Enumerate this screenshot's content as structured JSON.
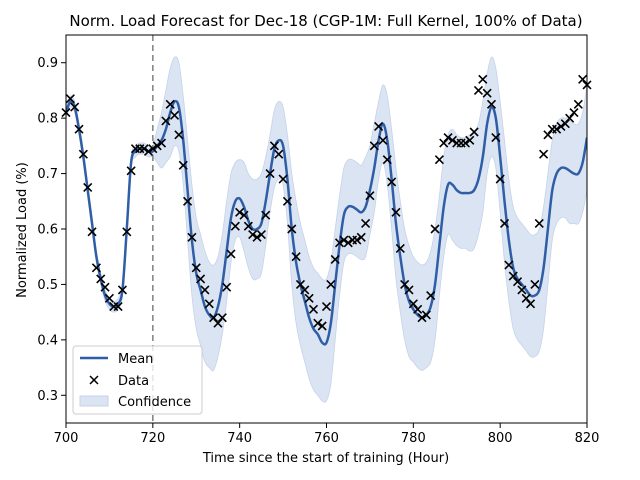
{
  "chart_data": {
    "type": "line",
    "title": "Norm. Load Forecast for Dec-18 (CGP-1M: Full Kernel, 100% of Data)",
    "xlabel": "Time since the start of training (Hour)",
    "ylabel": "Normalized Load (%)",
    "xlim": [
      700,
      820
    ],
    "ylim": [
      0.25,
      0.95
    ],
    "x_ticks": [
      700,
      720,
      740,
      760,
      780,
      800,
      820
    ],
    "y_ticks": [
      0.3,
      0.4,
      0.5,
      0.6,
      0.7,
      0.8,
      0.9
    ],
    "vline_x": 720,
    "grid": false,
    "legend_position": "lower-left",
    "legend": [
      "Mean",
      "Data",
      "Confidence"
    ],
    "colors": {
      "mean": "#2f5ea6",
      "band": "#dbe4f2",
      "band_edge": "#c5d3ea",
      "vline": "#7f7f7f"
    },
    "series": [
      {
        "name": "Mean",
        "x": [
          700,
          701,
          702,
          703,
          704,
          705,
          706,
          707,
          708,
          709,
          710,
          711,
          712,
          713,
          714,
          715,
          716,
          717,
          718,
          719,
          720,
          721,
          722,
          723,
          724,
          725,
          726,
          727,
          728,
          729,
          730,
          731,
          732,
          733,
          734,
          735,
          736,
          737,
          738,
          739,
          740,
          741,
          742,
          743,
          744,
          745,
          746,
          747,
          748,
          749,
          750,
          751,
          752,
          753,
          754,
          755,
          756,
          757,
          758,
          759,
          760,
          761,
          762,
          763,
          764,
          765,
          766,
          767,
          768,
          769,
          770,
          771,
          772,
          773,
          774,
          775,
          776,
          777,
          778,
          779,
          780,
          781,
          782,
          783,
          784,
          785,
          786,
          787,
          788,
          789,
          790,
          791,
          792,
          793,
          794,
          795,
          796,
          797,
          798,
          799,
          800,
          801,
          802,
          803,
          804,
          805,
          806,
          807,
          808,
          809,
          810,
          811,
          812,
          813,
          814,
          815,
          816,
          817,
          818,
          819,
          820
        ],
        "y": [
          0.81,
          0.83,
          0.82,
          0.78,
          0.73,
          0.67,
          0.61,
          0.55,
          0.51,
          0.48,
          0.465,
          0.46,
          0.465,
          0.49,
          0.6,
          0.72,
          0.74,
          0.745,
          0.745,
          0.74,
          0.74,
          0.75,
          0.76,
          0.78,
          0.81,
          0.83,
          0.82,
          0.76,
          0.67,
          0.58,
          0.52,
          0.49,
          0.46,
          0.445,
          0.44,
          0.46,
          0.5,
          0.56,
          0.62,
          0.65,
          0.655,
          0.64,
          0.615,
          0.6,
          0.6,
          0.61,
          0.65,
          0.7,
          0.745,
          0.76,
          0.75,
          0.69,
          0.6,
          0.54,
          0.5,
          0.47,
          0.44,
          0.42,
          0.41,
          0.395,
          0.395,
          0.43,
          0.5,
          0.57,
          0.625,
          0.64,
          0.64,
          0.635,
          0.63,
          0.64,
          0.67,
          0.71,
          0.76,
          0.79,
          0.76,
          0.69,
          0.61,
          0.55,
          0.5,
          0.47,
          0.455,
          0.445,
          0.44,
          0.445,
          0.46,
          0.5,
          0.57,
          0.64,
          0.68,
          0.68,
          0.67,
          0.665,
          0.665,
          0.665,
          0.67,
          0.69,
          0.73,
          0.79,
          0.82,
          0.8,
          0.73,
          0.65,
          0.58,
          0.53,
          0.51,
          0.5,
          0.49,
          0.48,
          0.48,
          0.49,
          0.53,
          0.6,
          0.67,
          0.7,
          0.71,
          0.71,
          0.705,
          0.7,
          0.7,
          0.72,
          0.765
        ],
        "upper": [
          0.82,
          0.84,
          0.83,
          0.79,
          0.74,
          0.68,
          0.62,
          0.56,
          0.52,
          0.49,
          0.475,
          0.47,
          0.475,
          0.5,
          0.61,
          0.73,
          0.75,
          0.755,
          0.755,
          0.75,
          0.75,
          0.78,
          0.81,
          0.85,
          0.89,
          0.91,
          0.9,
          0.84,
          0.76,
          0.68,
          0.62,
          0.59,
          0.56,
          0.54,
          0.535,
          0.55,
          0.59,
          0.65,
          0.7,
          0.72,
          0.725,
          0.72,
          0.7,
          0.69,
          0.69,
          0.7,
          0.73,
          0.77,
          0.815,
          0.83,
          0.82,
          0.77,
          0.7,
          0.65,
          0.61,
          0.58,
          0.55,
          0.53,
          0.52,
          0.51,
          0.51,
          0.54,
          0.6,
          0.66,
          0.71,
          0.725,
          0.725,
          0.72,
          0.715,
          0.73,
          0.75,
          0.79,
          0.83,
          0.86,
          0.84,
          0.78,
          0.71,
          0.65,
          0.6,
          0.57,
          0.55,
          0.54,
          0.535,
          0.54,
          0.56,
          0.6,
          0.66,
          0.73,
          0.77,
          0.78,
          0.77,
          0.765,
          0.765,
          0.77,
          0.775,
          0.79,
          0.83,
          0.88,
          0.91,
          0.89,
          0.83,
          0.76,
          0.69,
          0.64,
          0.62,
          0.61,
          0.6,
          0.59,
          0.59,
          0.6,
          0.64,
          0.7,
          0.76,
          0.79,
          0.8,
          0.8,
          0.8,
          0.79,
          0.79,
          0.81,
          0.86
        ],
        "lower": [
          0.8,
          0.82,
          0.81,
          0.77,
          0.72,
          0.66,
          0.6,
          0.54,
          0.5,
          0.47,
          0.455,
          0.45,
          0.455,
          0.48,
          0.59,
          0.71,
          0.73,
          0.735,
          0.735,
          0.73,
          0.73,
          0.72,
          0.71,
          0.72,
          0.73,
          0.75,
          0.74,
          0.68,
          0.58,
          0.48,
          0.42,
          0.39,
          0.36,
          0.35,
          0.345,
          0.37,
          0.41,
          0.47,
          0.54,
          0.58,
          0.585,
          0.56,
          0.53,
          0.51,
          0.51,
          0.52,
          0.57,
          0.63,
          0.675,
          0.69,
          0.68,
          0.61,
          0.5,
          0.43,
          0.39,
          0.36,
          0.33,
          0.31,
          0.3,
          0.29,
          0.29,
          0.32,
          0.4,
          0.48,
          0.54,
          0.555,
          0.555,
          0.55,
          0.545,
          0.55,
          0.59,
          0.63,
          0.69,
          0.72,
          0.68,
          0.6,
          0.51,
          0.45,
          0.4,
          0.37,
          0.36,
          0.35,
          0.345,
          0.35,
          0.36,
          0.4,
          0.48,
          0.55,
          0.59,
          0.58,
          0.57,
          0.565,
          0.565,
          0.56,
          0.565,
          0.59,
          0.63,
          0.7,
          0.73,
          0.71,
          0.63,
          0.54,
          0.47,
          0.42,
          0.4,
          0.39,
          0.38,
          0.37,
          0.37,
          0.38,
          0.42,
          0.5,
          0.58,
          0.61,
          0.62,
          0.62,
          0.61,
          0.61,
          0.61,
          0.63,
          0.67
        ]
      },
      {
        "name": "Data",
        "x": [
          700,
          701,
          702,
          703,
          704,
          705,
          706,
          707,
          708,
          709,
          710,
          711,
          712,
          713,
          714,
          715,
          716,
          717,
          718,
          719,
          720,
          721,
          722,
          723,
          724,
          725,
          726,
          727,
          728,
          729,
          730,
          731,
          732,
          733,
          734,
          735,
          736,
          737,
          738,
          739,
          740,
          741,
          742,
          743,
          744,
          745,
          746,
          747,
          748,
          749,
          750,
          751,
          752,
          753,
          754,
          755,
          756,
          757,
          758,
          759,
          760,
          761,
          762,
          763,
          764,
          765,
          766,
          767,
          768,
          769,
          770,
          771,
          772,
          773,
          774,
          775,
          776,
          777,
          778,
          779,
          780,
          781,
          782,
          783,
          784,
          785,
          786,
          787,
          788,
          789,
          790,
          791,
          792,
          793,
          794,
          795,
          796,
          797,
          798,
          799,
          800,
          801,
          802,
          803,
          804,
          805,
          806,
          807,
          808,
          809,
          810,
          811,
          812,
          813,
          814,
          815,
          816,
          817,
          818,
          819,
          820
        ],
        "y": [
          0.81,
          0.835,
          0.82,
          0.78,
          0.735,
          0.675,
          0.595,
          0.53,
          0.51,
          0.495,
          0.475,
          0.46,
          0.46,
          0.49,
          0.595,
          0.705,
          0.745,
          0.745,
          0.745,
          0.74,
          0.745,
          0.75,
          0.755,
          0.795,
          0.825,
          0.805,
          0.77,
          0.715,
          0.65,
          0.585,
          0.53,
          0.51,
          0.49,
          0.465,
          0.44,
          0.43,
          0.44,
          0.495,
          0.555,
          0.605,
          0.63,
          0.625,
          0.605,
          0.59,
          0.585,
          0.59,
          0.625,
          0.7,
          0.75,
          0.735,
          0.69,
          0.65,
          0.6,
          0.55,
          0.5,
          0.49,
          0.475,
          0.455,
          0.43,
          0.425,
          0.46,
          0.5,
          0.545,
          0.575,
          0.58,
          0.575,
          0.58,
          0.58,
          0.585,
          0.61,
          0.66,
          0.75,
          0.785,
          0.76,
          0.725,
          0.685,
          0.63,
          0.565,
          0.5,
          0.49,
          0.465,
          0.455,
          0.44,
          0.445,
          0.48,
          0.6,
          0.725,
          0.755,
          0.765,
          0.76,
          0.755,
          0.755,
          0.755,
          0.76,
          0.775,
          0.85,
          0.87,
          0.845,
          0.825,
          0.765,
          0.69,
          0.61,
          0.535,
          0.515,
          0.505,
          0.49,
          0.475,
          0.465,
          0.5,
          0.61,
          0.735,
          0.77,
          0.78,
          0.78,
          0.785,
          0.79,
          0.8,
          0.81,
          0.825,
          0.87,
          0.86
        ]
      }
    ]
  }
}
